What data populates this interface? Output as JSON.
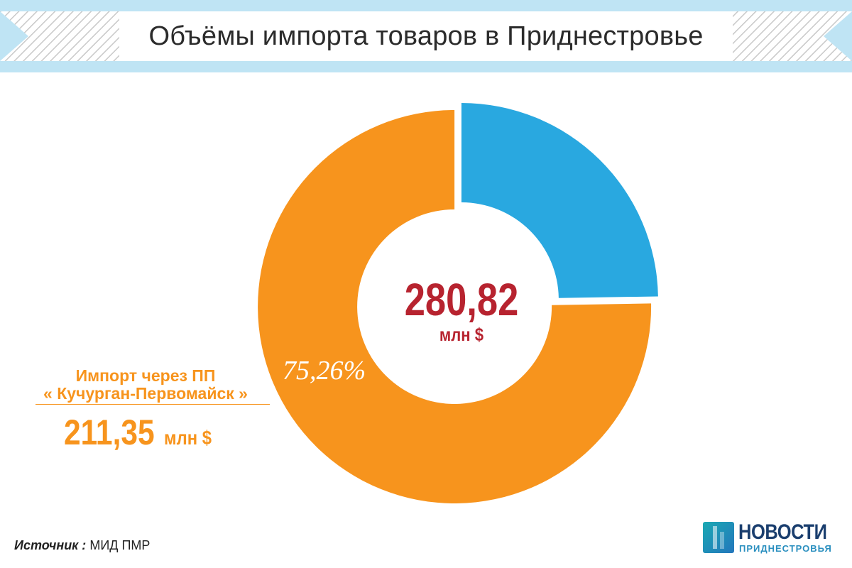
{
  "header": {
    "title": "Объёмы импорта товаров в Приднестровье"
  },
  "chart_data": {
    "type": "pie",
    "title": "Объёмы импорта товаров в Приднестровье",
    "total": 280.82,
    "total_label": "280,82",
    "total_unit": "млн $",
    "slices": [
      {
        "name": "Импорт через ПП « Кучурган-Первомайск »",
        "value": 211.35,
        "percent": 75.26,
        "color": "#f7941d"
      },
      {
        "value": 69.47,
        "percent": 24.74,
        "color": "#29a8e0"
      }
    ],
    "callout": {
      "line1": "Импорт через ПП",
      "line2": "« Кучурган-Первомайск »",
      "value": "211,35",
      "unit": "млн $",
      "percent_label": "75,26%"
    }
  },
  "footer": {
    "source_label": "Источник :",
    "source_value": "МИД ПМР"
  },
  "logo": {
    "word": "НОВОСТИ",
    "sub": "ПРИДНЕСТРОВЬЯ",
    "icon": "news-logo-icon"
  },
  "colors": {
    "header_bg": "#bfe4f4",
    "orange": "#f7941d",
    "blue": "#29a8e0",
    "red": "#b7232f"
  }
}
